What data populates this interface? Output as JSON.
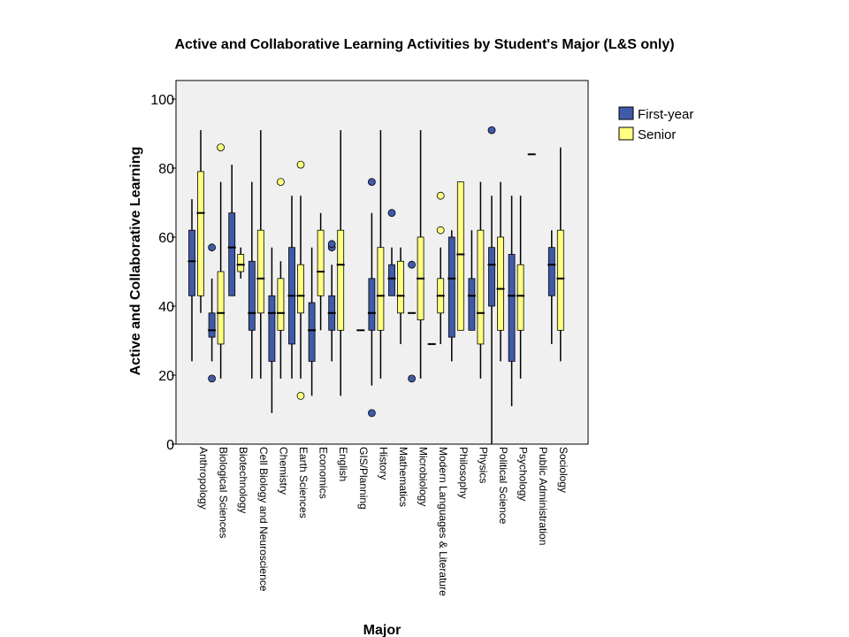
{
  "chart_data": {
    "type": "boxplot",
    "title": "Active and Collaborative Learning Activities by Student's Major (L&S only)",
    "xlabel": "Major",
    "ylabel": "Active and Collaborative Learning",
    "ylim": [
      0,
      100
    ],
    "yticks": [
      0,
      20,
      40,
      60,
      80,
      100
    ],
    "grid": false,
    "legend_position": "right",
    "categories": [
      "Anthropology",
      "Biological Sciences",
      "Biotechnology",
      "Cell Biology and Neuroscience",
      "Chemistry",
      "Earth Sciences",
      "Economics",
      "English",
      "GIS/Planning",
      "History",
      "Mathematics",
      "Microbiology",
      "Modern Languages & Literature",
      "Philosophy",
      "Physics",
      "Political Science",
      "Psychology",
      "Public Administration",
      "Sociology"
    ],
    "series": [
      {
        "name": "First-year",
        "color": "#3f5aa8",
        "boxes": [
          {
            "min": 24,
            "q1": 43,
            "median": 53,
            "q3": 62,
            "max": 71,
            "outliers": []
          },
          {
            "min": 24,
            "q1": 31,
            "median": 33,
            "q3": 38,
            "max": 48,
            "outliers": [
              19,
              57
            ]
          },
          {
            "min": 43,
            "q1": 43,
            "median": 57,
            "q3": 67,
            "max": 81,
            "outliers": []
          },
          {
            "min": 19,
            "q1": 33,
            "median": 38,
            "q3": 53,
            "max": 76,
            "outliers": []
          },
          {
            "min": 9,
            "q1": 24,
            "median": 38,
            "q3": 43,
            "max": 57,
            "outliers": []
          },
          {
            "min": 19,
            "q1": 29,
            "median": 43,
            "q3": 57,
            "max": 72,
            "outliers": []
          },
          {
            "min": 14,
            "q1": 24,
            "median": 33,
            "q3": 41,
            "max": 57,
            "outliers": []
          },
          {
            "min": 24,
            "q1": 33,
            "median": 38,
            "q3": 43,
            "max": 52,
            "outliers": [
              57,
              58
            ]
          },
          null,
          {
            "min": 17,
            "q1": 33,
            "median": 38,
            "q3": 48,
            "max": 67,
            "outliers": [
              9,
              76
            ]
          },
          {
            "min": 43,
            "q1": 43,
            "median": 48,
            "q3": 52,
            "max": 57,
            "outliers": [
              67
            ]
          },
          {
            "min": 38,
            "q1": 38,
            "median": 38,
            "q3": 38,
            "max": 38,
            "outliers": [
              19,
              52
            ]
          },
          {
            "min": 29,
            "q1": 29,
            "median": 29,
            "q3": 29,
            "max": 29,
            "outliers": []
          },
          {
            "min": 24,
            "q1": 31,
            "median": 48,
            "q3": 60,
            "max": 62,
            "outliers": []
          },
          {
            "min": 33,
            "q1": 33,
            "median": 43,
            "q3": 48,
            "max": 62,
            "outliers": []
          },
          {
            "min": 0,
            "q1": 40,
            "median": 52,
            "q3": 57,
            "max": 72,
            "outliers": [
              91
            ]
          },
          {
            "min": 11,
            "q1": 24,
            "median": 43,
            "q3": 55,
            "max": 72,
            "outliers": []
          },
          {
            "min": 84,
            "q1": 84,
            "median": 84,
            "q3": 84,
            "max": 84,
            "outliers": []
          },
          {
            "min": 29,
            "q1": 43,
            "median": 52,
            "q3": 57,
            "max": 62,
            "outliers": []
          }
        ]
      },
      {
        "name": "Senior",
        "color": "#ffff80",
        "boxes": [
          {
            "min": 38,
            "q1": 43,
            "median": 67,
            "q3": 79,
            "max": 91,
            "outliers": []
          },
          {
            "min": 19,
            "q1": 29,
            "median": 38,
            "q3": 50,
            "max": 76,
            "outliers": [
              86
            ]
          },
          {
            "min": 48,
            "q1": 50,
            "median": 52,
            "q3": 55,
            "max": 57,
            "outliers": []
          },
          {
            "min": 19,
            "q1": 38,
            "median": 48,
            "q3": 62,
            "max": 91,
            "outliers": []
          },
          {
            "min": 19,
            "q1": 33,
            "median": 38,
            "q3": 48,
            "max": 53,
            "outliers": [
              76
            ]
          },
          {
            "min": 19,
            "q1": 38,
            "median": 43,
            "q3": 52,
            "max": 72,
            "outliers": [
              14,
              81
            ]
          },
          {
            "min": 33,
            "q1": 43,
            "median": 50,
            "q3": 62,
            "max": 67,
            "outliers": []
          },
          {
            "min": 14,
            "q1": 33,
            "median": 52,
            "q3": 62,
            "max": 91,
            "outliers": []
          },
          {
            "min": 33,
            "q1": 33,
            "median": 33,
            "q3": 33,
            "max": 33,
            "outliers": []
          },
          {
            "min": 19,
            "q1": 33,
            "median": 43,
            "q3": 57,
            "max": 91,
            "outliers": []
          },
          {
            "min": 29,
            "q1": 38,
            "median": 43,
            "q3": 53,
            "max": 57,
            "outliers": []
          },
          {
            "min": 19,
            "q1": 36,
            "median": 48,
            "q3": 60,
            "max": 91,
            "outliers": []
          },
          {
            "min": 29,
            "q1": 38,
            "median": 43,
            "q3": 48,
            "max": 57,
            "outliers": [
              62,
              72
            ]
          },
          {
            "min": 33,
            "q1": 33,
            "median": 55,
            "q3": 76,
            "max": 76,
            "outliers": []
          },
          {
            "min": 19,
            "q1": 29,
            "median": 38,
            "q3": 62,
            "max": 76,
            "outliers": []
          },
          {
            "min": 24,
            "q1": 33,
            "median": 45,
            "q3": 60,
            "max": 76,
            "outliers": []
          },
          {
            "min": 19,
            "q1": 33,
            "median": 43,
            "q3": 52,
            "max": 72,
            "outliers": []
          },
          null,
          {
            "min": 24,
            "q1": 33,
            "median": 48,
            "q3": 62,
            "max": 86,
            "outliers": []
          }
        ]
      }
    ]
  }
}
